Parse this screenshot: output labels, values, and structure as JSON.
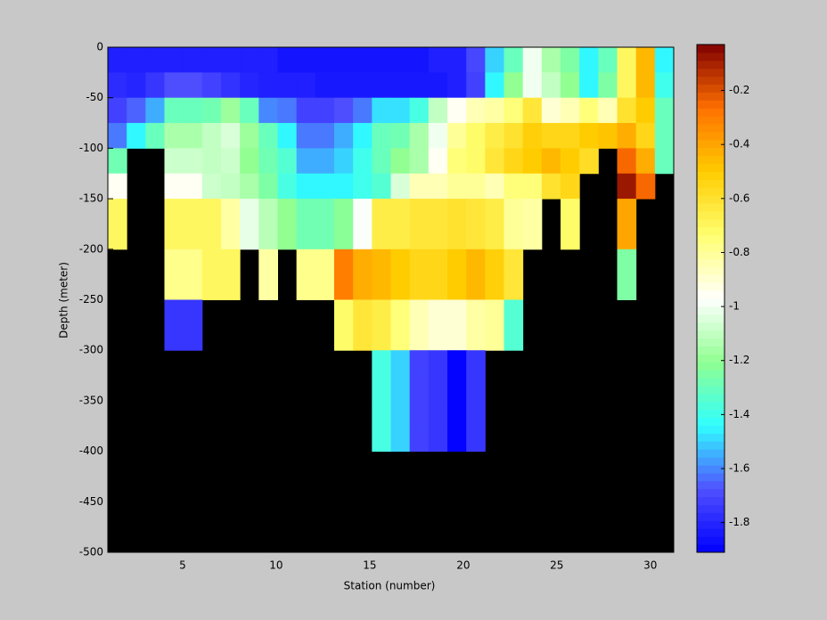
{
  "chart_data": {
    "type": "heatmap",
    "xlabel": "Station (number)",
    "ylabel": "Depth (meter)",
    "xlim": [
      1,
      31.25
    ],
    "ylim": [
      -500,
      0
    ],
    "xticks": [
      5,
      10,
      15,
      20,
      25,
      30
    ],
    "yticks": [
      0,
      -50,
      -100,
      -150,
      -200,
      -250,
      -300,
      -350,
      -400,
      -450,
      -500
    ],
    "missing_color": "#000000",
    "colorbar": {
      "clim": [
        -1.91,
        -0.03
      ],
      "ticks": [
        -0.2,
        -0.4,
        -0.6,
        -0.8,
        -1,
        -1.2,
        -1.4,
        -1.6,
        -1.8
      ],
      "colormap": [
        "#0000ff",
        "#5050ff",
        "#30ffff",
        "#90ff90",
        "#ffffff",
        "#ffff70",
        "#ffcc00",
        "#ff7000",
        "#800000"
      ]
    },
    "values": [
      [
        -1.82,
        -1.82,
        -1.82,
        -1.82,
        -1.82,
        -1.82,
        -1.82,
        -1.82,
        -1.82,
        -1.85,
        -1.85,
        -1.85,
        -1.85,
        -1.85,
        -1.85,
        -1.85,
        -1.85,
        -1.82,
        -1.82,
        -1.7,
        -1.5,
        -1.3,
        -1.0,
        -1.15,
        -1.25,
        -1.45,
        -1.3,
        -0.7,
        -0.45,
        -1.45
      ],
      [
        -1.78,
        -1.8,
        -1.75,
        -1.68,
        -1.68,
        -1.72,
        -1.76,
        -1.8,
        -1.82,
        -1.82,
        -1.82,
        -1.84,
        -1.84,
        -1.84,
        -1.84,
        -1.84,
        -1.84,
        -1.84,
        -1.82,
        -1.72,
        -1.45,
        -1.2,
        -1.0,
        -1.1,
        -1.2,
        -1.45,
        -1.25,
        -0.7,
        -0.45,
        -1.4
      ],
      [
        -1.72,
        -1.65,
        -1.55,
        -1.3,
        -1.3,
        -1.28,
        -1.18,
        -1.3,
        -1.6,
        -1.62,
        -1.72,
        -1.72,
        -1.68,
        -1.62,
        -1.48,
        -1.48,
        -1.38,
        -1.1,
        -0.95,
        -0.85,
        -0.82,
        -0.75,
        -0.62,
        -0.9,
        -0.85,
        -0.75,
        -0.85,
        -0.6,
        -0.5,
        -1.3
      ],
      [
        -1.62,
        -1.45,
        -1.3,
        -1.15,
        -1.15,
        -1.1,
        -1.05,
        -1.18,
        -1.3,
        -1.45,
        -1.62,
        -1.62,
        -1.55,
        -1.45,
        -1.3,
        -1.28,
        -1.15,
        -1.0,
        -0.8,
        -0.72,
        -0.65,
        -0.6,
        -0.52,
        -0.55,
        -0.55,
        -0.5,
        -0.48,
        -0.42,
        -0.55,
        -1.3
      ],
      [
        -1.28,
        null,
        null,
        -1.08,
        -1.08,
        -1.1,
        -1.08,
        -1.2,
        -1.28,
        -1.35,
        -1.55,
        -1.55,
        -1.5,
        -1.4,
        -1.3,
        -1.2,
        -1.15,
        -0.95,
        -0.75,
        -0.72,
        -0.62,
        -0.55,
        -0.5,
        -0.45,
        -0.5,
        -0.58,
        null,
        -0.25,
        -0.42,
        -1.3
      ],
      [
        -0.95,
        null,
        null,
        -0.95,
        -0.95,
        -1.08,
        -1.1,
        -1.15,
        -1.25,
        -1.38,
        -1.45,
        -1.45,
        -1.45,
        -1.4,
        -1.35,
        -1.05,
        -0.85,
        -0.85,
        -0.8,
        -0.8,
        -0.85,
        -0.75,
        -0.75,
        -0.6,
        -0.55,
        null,
        null,
        -0.08,
        -0.25,
        null
      ],
      [
        -0.7,
        null,
        null,
        -0.7,
        -0.7,
        -0.7,
        -0.82,
        -1.02,
        -1.12,
        -1.2,
        -1.28,
        -1.28,
        -1.22,
        -0.98,
        -0.65,
        -0.65,
        -0.62,
        -0.62,
        -0.6,
        -0.62,
        -0.65,
        -0.8,
        -0.82,
        null,
        -0.72,
        null,
        null,
        -0.4,
        null,
        null
      ],
      [
        -0.7,
        null,
        null,
        -0.7,
        -0.7,
        -0.7,
        -0.82,
        -1.02,
        -1.12,
        -1.2,
        -1.28,
        -1.28,
        -1.22,
        -0.98,
        -0.65,
        -0.65,
        -0.62,
        -0.62,
        -0.6,
        -0.62,
        -0.65,
        -0.8,
        -0.82,
        null,
        -0.72,
        null,
        null,
        -0.4,
        null,
        null
      ],
      [
        null,
        null,
        null,
        -0.78,
        -0.78,
        -0.7,
        -0.7,
        null,
        -0.82,
        null,
        -0.78,
        -0.78,
        -0.3,
        -0.42,
        -0.45,
        -0.5,
        -0.55,
        -0.55,
        -0.5,
        -0.45,
        -0.52,
        -0.62,
        null,
        null,
        null,
        null,
        null,
        -1.25,
        null,
        null
      ],
      [
        null,
        null,
        null,
        -0.78,
        -0.78,
        -0.7,
        -0.7,
        null,
        -0.82,
        null,
        -0.78,
        -0.78,
        -0.3,
        -0.42,
        -0.45,
        -0.5,
        -0.55,
        -0.55,
        -0.5,
        -0.45,
        -0.52,
        -0.62,
        null,
        null,
        null,
        null,
        null,
        -1.25,
        null,
        null
      ],
      [
        null,
        null,
        null,
        -1.75,
        -1.75,
        null,
        null,
        null,
        null,
        null,
        null,
        null,
        -0.72,
        -0.62,
        -0.65,
        -0.75,
        -0.85,
        -0.9,
        -0.9,
        -0.82,
        -0.8,
        -1.35,
        null,
        null,
        null,
        null,
        null,
        null,
        null,
        null
      ],
      [
        null,
        null,
        null,
        -1.75,
        -1.75,
        null,
        null,
        null,
        null,
        null,
        null,
        null,
        -0.72,
        -0.62,
        -0.65,
        -0.75,
        -0.85,
        -0.9,
        -0.9,
        -0.82,
        -0.8,
        -1.35,
        null,
        null,
        null,
        null,
        null,
        null,
        null,
        null
      ],
      [
        null,
        null,
        null,
        null,
        null,
        null,
        null,
        null,
        null,
        null,
        null,
        null,
        null,
        null,
        -1.38,
        -1.5,
        -1.72,
        -1.75,
        -1.9,
        -1.75,
        null,
        null,
        null,
        null,
        null,
        null,
        null,
        null,
        null,
        null
      ],
      [
        null,
        null,
        null,
        null,
        null,
        null,
        null,
        null,
        null,
        null,
        null,
        null,
        null,
        null,
        -1.38,
        -1.5,
        -1.72,
        -1.75,
        -1.9,
        -1.75,
        null,
        null,
        null,
        null,
        null,
        null,
        null,
        null,
        null,
        null
      ],
      [
        null,
        null,
        null,
        null,
        null,
        null,
        null,
        null,
        null,
        null,
        null,
        null,
        null,
        null,
        -1.38,
        -1.5,
        -1.72,
        -1.75,
        -1.9,
        -1.75,
        null,
        null,
        null,
        null,
        null,
        null,
        null,
        null,
        null,
        null
      ],
      [
        null,
        null,
        null,
        null,
        null,
        null,
        null,
        null,
        null,
        null,
        null,
        null,
        null,
        null,
        -1.38,
        -1.5,
        -1.72,
        -1.75,
        -1.9,
        -1.75,
        null,
        null,
        null,
        null,
        null,
        null,
        null,
        null,
        null,
        null
      ],
      [
        null,
        null,
        null,
        null,
        null,
        null,
        null,
        null,
        null,
        null,
        null,
        null,
        null,
        null,
        null,
        null,
        null,
        null,
        null,
        null,
        null,
        null,
        null,
        null,
        null,
        null,
        null,
        null,
        null,
        null
      ],
      [
        null,
        null,
        null,
        null,
        null,
        null,
        null,
        null,
        null,
        null,
        null,
        null,
        null,
        null,
        null,
        null,
        null,
        null,
        null,
        null,
        null,
        null,
        null,
        null,
        null,
        null,
        null,
        null,
        null,
        null
      ],
      [
        null,
        null,
        null,
        null,
        null,
        null,
        null,
        null,
        null,
        null,
        null,
        null,
        null,
        null,
        null,
        null,
        null,
        null,
        null,
        null,
        null,
        null,
        null,
        null,
        null,
        null,
        null,
        null,
        null,
        null
      ],
      [
        null,
        null,
        null,
        null,
        null,
        null,
        null,
        null,
        null,
        null,
        null,
        null,
        null,
        null,
        null,
        null,
        null,
        null,
        null,
        null,
        null,
        null,
        null,
        null,
        null,
        null,
        null,
        null,
        null,
        null
      ]
    ]
  }
}
